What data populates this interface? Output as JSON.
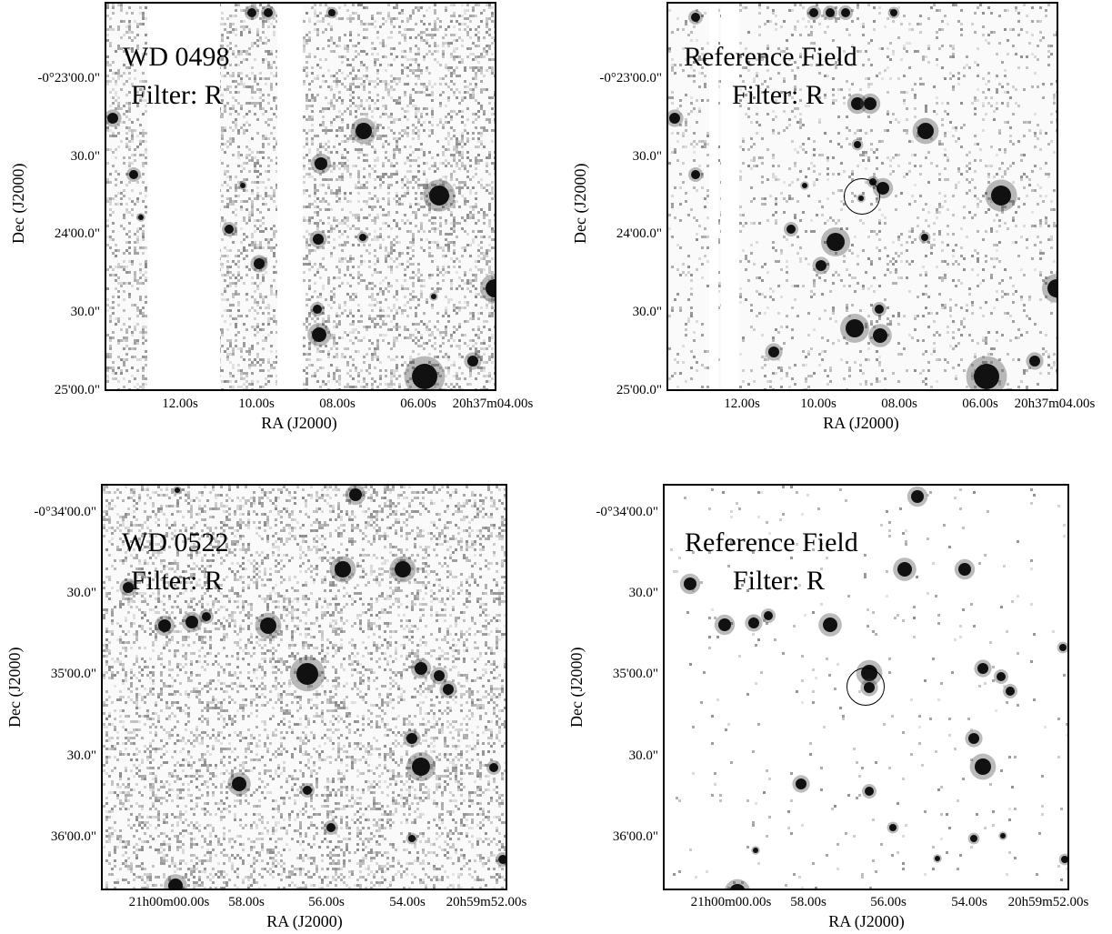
{
  "panels": [
    {
      "id": "top-left",
      "label_line1": "WD 0498",
      "label_line2": "Filter: R",
      "yticks": [
        "-0°23'00.0\"",
        "30.0\"",
        "24'00.0\"",
        "30.0\"",
        "25'00.0\""
      ],
      "xticks": [
        "12.00s",
        "10.00s",
        "08.00s",
        "06.00s",
        "20h37m04.00s"
      ],
      "xlabel": "RA (J2000)",
      "ylabel": "Dec (J2000)",
      "has_circle": false,
      "has_gaps": true
    },
    {
      "id": "top-right",
      "label_line1": "Reference Field",
      "label_line2": "Filter: R",
      "yticks": [
        "-0°23'00.0\"",
        "30.0\"",
        "24'00.0\"",
        "30.0\"",
        "25'00.0\""
      ],
      "xticks": [
        "12.00s",
        "10.00s",
        "08.00s",
        "06.00s",
        "20h37m04.00s"
      ],
      "xlabel": "RA (J2000)",
      "ylabel": "Dec (J2000)",
      "has_circle": true,
      "has_gaps": true
    },
    {
      "id": "bottom-left",
      "label_line1": "WD 0522",
      "label_line2": "Filter: R",
      "yticks": [
        "-0°34'00.0\"",
        "30.0\"",
        "35'00.0\"",
        "30.0\"",
        "36'00.0\""
      ],
      "xticks": [
        "21h00m00.00s",
        "58.00s",
        "56.00s",
        "54.00s",
        "20h59m52.00s"
      ],
      "xlabel": "RA (J2000)",
      "ylabel": "Dec (J2000)",
      "has_circle": false,
      "has_gaps": false
    },
    {
      "id": "bottom-right",
      "label_line1": "Reference Field",
      "label_line2": "Filter: R",
      "yticks": [
        "-0°34'00.0\"",
        "30.0\"",
        "35'00.0\"",
        "30.0\"",
        "36'00.0\""
      ],
      "xticks": [
        "21h00m00.00s",
        "58.00s",
        "56.00s",
        "54.00s",
        "20h59m52.00s"
      ],
      "xlabel": "RA (J2000)",
      "ylabel": "Dec (J2000)",
      "has_circle": true,
      "has_gaps": false
    }
  ]
}
